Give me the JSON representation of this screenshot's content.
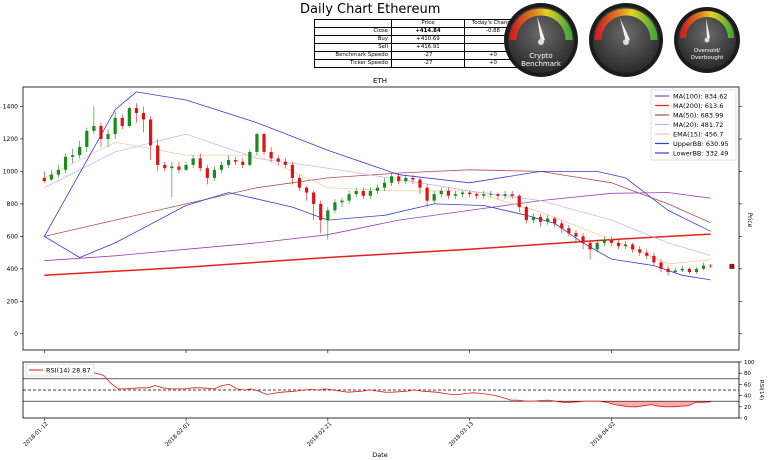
{
  "page": {
    "title": "Daily Chart Ethereum"
  },
  "quote_table": {
    "headers": [
      "",
      "Price",
      "Today's Change"
    ],
    "rows": [
      {
        "label": "Close",
        "price": "+414.84",
        "change": "-0.88"
      },
      {
        "label": "Buy",
        "price": "+410.69",
        "change": ""
      },
      {
        "label": "Sell",
        "price": "+416.91",
        "change": ""
      },
      {
        "label": "Benchmark Speedo",
        "price": "-27",
        "change": "+0"
      },
      {
        "label": "Ticker Speedo",
        "price": "-27",
        "change": "+0"
      }
    ]
  },
  "gauges": [
    {
      "label_line1": "Crypto",
      "label_line2": "Benchmark",
      "value": -27
    },
    {
      "label_line1": "",
      "label_line2": "",
      "value": -27
    },
    {
      "label_line1": "Oversold/",
      "label_line2": "Overbought",
      "value": 28.87
    }
  ],
  "chart_data": [
    {
      "type": "candlestick",
      "title": "ETH",
      "ylabel": "Price",
      "ylim": [
        -100,
        1520
      ],
      "yticks": [
        0,
        200,
        400,
        600,
        800,
        1000,
        1200,
        1400
      ],
      "legend_position": "top-right",
      "legend": [
        {
          "label": "MA(100): 834.62",
          "color": "#9b3fb8"
        },
        {
          "label": "MA(200): 613.6",
          "color": "#e8201a"
        },
        {
          "label": "MA(50): 683.99",
          "color": "#b05050"
        },
        {
          "label": "MA(20): 481.72",
          "color": "#b7b3ee"
        },
        {
          "label": "EMA(15): 456.7",
          "color": "#f2c79a"
        },
        {
          "label": "UpperBB: 630.95",
          "color": "#3a3ae0"
        },
        {
          "label": "LowerBB: 332.49",
          "color": "#3a3ae0"
        }
      ],
      "candles": [
        [
          0,
          960,
          940,
          1000,
          930
        ],
        [
          1,
          950,
          980,
          1010,
          940
        ],
        [
          2,
          980,
          1010,
          1040,
          960
        ],
        [
          3,
          1010,
          1090,
          1110,
          990
        ],
        [
          4,
          1090,
          1100,
          1140,
          1050
        ],
        [
          5,
          1100,
          1150,
          1190,
          1080
        ],
        [
          6,
          1150,
          1250,
          1270,
          1120
        ],
        [
          7,
          1250,
          1280,
          1400,
          1230
        ],
        [
          8,
          1280,
          1200,
          1300,
          1150
        ],
        [
          9,
          1200,
          1230,
          1260,
          1150
        ],
        [
          10,
          1230,
          1330,
          1370,
          1200
        ],
        [
          11,
          1330,
          1280,
          1350,
          1260
        ],
        [
          12,
          1280,
          1390,
          1400,
          1270
        ],
        [
          13,
          1390,
          1360,
          1420,
          1300
        ],
        [
          14,
          1360,
          1320,
          1400,
          1240
        ],
        [
          15,
          1320,
          1160,
          1340,
          1070
        ],
        [
          16,
          1160,
          1040,
          1200,
          1000
        ],
        [
          17,
          1040,
          1020,
          1060,
          1000
        ],
        [
          18,
          1020,
          1030,
          1060,
          840
        ],
        [
          19,
          1030,
          1010,
          1060,
          990
        ],
        [
          20,
          1010,
          1040,
          1060,
          1000
        ],
        [
          21,
          1040,
          1080,
          1100,
          1020
        ],
        [
          22,
          1080,
          1020,
          1110,
          1000
        ],
        [
          23,
          1020,
          960,
          1040,
          920
        ],
        [
          24,
          960,
          1010,
          1030,
          940
        ],
        [
          25,
          1010,
          1040,
          1060,
          990
        ],
        [
          26,
          1040,
          1070,
          1100,
          1020
        ],
        [
          27,
          1070,
          1060,
          1090,
          1040
        ],
        [
          28,
          1060,
          1040,
          1080,
          1020
        ],
        [
          29,
          1040,
          1120,
          1140,
          1030
        ],
        [
          30,
          1120,
          1230,
          1240,
          1100
        ],
        [
          31,
          1230,
          1120,
          1240,
          1100
        ],
        [
          32,
          1120,
          1080,
          1150,
          1060
        ],
        [
          33,
          1080,
          1060,
          1100,
          1040
        ],
        [
          34,
          1060,
          1040,
          1080,
          1020
        ],
        [
          35,
          1040,
          960,
          1060,
          920
        ],
        [
          36,
          960,
          900,
          980,
          880
        ],
        [
          37,
          900,
          870,
          910,
          820
        ],
        [
          38,
          870,
          800,
          880,
          700
        ],
        [
          39,
          800,
          700,
          820,
          620
        ],
        [
          40,
          700,
          760,
          780,
          580
        ],
        [
          41,
          760,
          810,
          830,
          740
        ],
        [
          42,
          810,
          820,
          840,
          780
        ],
        [
          43,
          820,
          860,
          880,
          800
        ],
        [
          44,
          860,
          880,
          900,
          840
        ],
        [
          45,
          880,
          850,
          900,
          830
        ],
        [
          46,
          850,
          880,
          900,
          830
        ],
        [
          47,
          880,
          900,
          920,
          860
        ],
        [
          48,
          900,
          930,
          960,
          880
        ],
        [
          49,
          930,
          970,
          990,
          910
        ],
        [
          50,
          970,
          940,
          990,
          920
        ],
        [
          51,
          940,
          960,
          980,
          920
        ],
        [
          52,
          960,
          950,
          980,
          920
        ],
        [
          53,
          950,
          900,
          960,
          860
        ],
        [
          54,
          900,
          820,
          920,
          780
        ],
        [
          55,
          820,
          860,
          880,
          800
        ],
        [
          56,
          860,
          880,
          900,
          840
        ],
        [
          57,
          880,
          850,
          900,
          830
        ],
        [
          58,
          850,
          860,
          880,
          830
        ],
        [
          59,
          860,
          870,
          880,
          840
        ],
        [
          60,
          870,
          860,
          880,
          840
        ],
        [
          61,
          860,
          850,
          870,
          830
        ],
        [
          62,
          850,
          860,
          880,
          830
        ],
        [
          63,
          860,
          860,
          880,
          840
        ],
        [
          64,
          860,
          850,
          870,
          830
        ],
        [
          65,
          850,
          860,
          880,
          830
        ],
        [
          66,
          860,
          850,
          880,
          830
        ],
        [
          67,
          850,
          780,
          860,
          750
        ],
        [
          68,
          780,
          700,
          790,
          680
        ],
        [
          69,
          700,
          720,
          740,
          680
        ],
        [
          70,
          720,
          690,
          740,
          660
        ],
        [
          71,
          690,
          710,
          730,
          670
        ],
        [
          72,
          710,
          680,
          720,
          660
        ],
        [
          73,
          680,
          650,
          700,
          620
        ],
        [
          74,
          650,
          620,
          670,
          600
        ],
        [
          75,
          620,
          600,
          640,
          570
        ],
        [
          76,
          600,
          560,
          620,
          520
        ],
        [
          77,
          560,
          520,
          580,
          460
        ],
        [
          78,
          520,
          560,
          580,
          500
        ],
        [
          79,
          560,
          580,
          600,
          540
        ],
        [
          80,
          580,
          560,
          600,
          540
        ],
        [
          81,
          560,
          540,
          580,
          520
        ],
        [
          82,
          540,
          550,
          570,
          520
        ],
        [
          83,
          550,
          520,
          560,
          500
        ],
        [
          84,
          520,
          500,
          540,
          480
        ],
        [
          85,
          500,
          480,
          520,
          460
        ],
        [
          86,
          480,
          440,
          500,
          420
        ],
        [
          87,
          440,
          400,
          460,
          380
        ],
        [
          88,
          400,
          380,
          420,
          360
        ],
        [
          89,
          380,
          390,
          410,
          370
        ],
        [
          90,
          390,
          400,
          420,
          380
        ],
        [
          91,
          400,
          380,
          410,
          370
        ],
        [
          92,
          380,
          400,
          410,
          370
        ],
        [
          93,
          400,
          420,
          440,
          390
        ],
        [
          94,
          420,
          415,
          430,
          405
        ]
      ],
      "lines": {
        "ma100": [
          [
            0,
            450
          ],
          [
            10,
            480
          ],
          [
            20,
            520
          ],
          [
            30,
            560
          ],
          [
            40,
            610
          ],
          [
            50,
            700
          ],
          [
            60,
            760
          ],
          [
            70,
            820
          ],
          [
            80,
            865
          ],
          [
            88,
            870
          ],
          [
            94,
            835
          ]
        ],
        "ma200": [
          [
            0,
            360
          ],
          [
            20,
            410
          ],
          [
            40,
            470
          ],
          [
            60,
            520
          ],
          [
            80,
            580
          ],
          [
            94,
            614
          ]
        ],
        "ma50": [
          [
            0,
            600
          ],
          [
            10,
            700
          ],
          [
            20,
            800
          ],
          [
            30,
            900
          ],
          [
            40,
            960
          ],
          [
            50,
            990
          ],
          [
            60,
            1010
          ],
          [
            70,
            1000
          ],
          [
            80,
            930
          ],
          [
            88,
            800
          ],
          [
            94,
            684
          ]
        ],
        "ma20": [
          [
            0,
            900
          ],
          [
            10,
            1120
          ],
          [
            20,
            1230
          ],
          [
            30,
            1080
          ],
          [
            40,
            1020
          ],
          [
            50,
            950
          ],
          [
            60,
            880
          ],
          [
            70,
            820
          ],
          [
            80,
            700
          ],
          [
            88,
            560
          ],
          [
            94,
            482
          ]
        ],
        "ema15": [
          [
            0,
            960
          ],
          [
            10,
            1180
          ],
          [
            20,
            1100
          ],
          [
            30,
            1100
          ],
          [
            40,
            900
          ],
          [
            50,
            880
          ],
          [
            60,
            880
          ],
          [
            70,
            750
          ],
          [
            80,
            580
          ],
          [
            88,
            430
          ],
          [
            94,
            457
          ]
        ],
        "upperbb": [
          [
            0,
            600
          ],
          [
            10,
            1380
          ],
          [
            13,
            1490
          ],
          [
            20,
            1440
          ],
          [
            30,
            1300
          ],
          [
            40,
            1130
          ],
          [
            50,
            980
          ],
          [
            60,
            930
          ],
          [
            70,
            1000
          ],
          [
            78,
            1000
          ],
          [
            82,
            960
          ],
          [
            88,
            760
          ],
          [
            94,
            631
          ]
        ],
        "lowerbb": [
          [
            0,
            600
          ],
          [
            5,
            470
          ],
          [
            10,
            560
          ],
          [
            20,
            790
          ],
          [
            26,
            870
          ],
          [
            35,
            780
          ],
          [
            40,
            700
          ],
          [
            48,
            730
          ],
          [
            55,
            800
          ],
          [
            62,
            790
          ],
          [
            68,
            730
          ],
          [
            72,
            680
          ],
          [
            76,
            560
          ],
          [
            80,
            460
          ],
          [
            86,
            420
          ],
          [
            90,
            360
          ],
          [
            94,
            332
          ]
        ]
      }
    },
    {
      "type": "line",
      "title": "",
      "series_label": "RSI(14) 28.87",
      "ylabel": "RSI(14)",
      "ylim": [
        0,
        100
      ],
      "yticks": [
        0,
        20,
        40,
        60,
        80,
        100
      ],
      "reference_lines": [
        30,
        50,
        70
      ],
      "values": [
        90,
        90,
        88,
        82,
        78,
        80,
        82,
        80,
        76,
        62,
        52,
        52,
        53,
        54,
        54,
        58,
        54,
        52,
        52,
        52,
        54,
        54,
        53,
        52,
        58,
        60,
        52,
        50,
        52,
        48,
        42,
        44,
        46,
        47,
        48,
        50,
        51,
        50,
        52,
        50,
        48,
        46,
        47,
        48,
        50,
        48,
        46,
        46,
        47,
        48,
        50,
        48,
        47,
        46,
        44,
        42,
        42,
        44,
        45,
        44,
        42,
        40,
        36,
        32,
        32,
        30,
        30,
        31,
        32,
        30,
        28,
        28,
        29,
        30,
        30,
        30,
        28,
        24,
        22,
        20,
        20,
        22,
        24,
        21,
        20,
        20,
        21,
        22,
        28,
        28,
        29
      ]
    }
  ],
  "x_axis": {
    "xlabel": "Date",
    "ticks": [
      {
        "label": "2018-01-12",
        "index": 0
      },
      {
        "label": "2018-02-01",
        "index": 20
      },
      {
        "label": "2018-02-21",
        "index": 40
      },
      {
        "label": "2018-03-13",
        "index": 60
      },
      {
        "label": "2018-04-02",
        "index": 80
      }
    ],
    "range": [
      -3,
      98
    ]
  },
  "colors": {
    "up": "#1a8a1a",
    "down": "#dc1414",
    "rsi": "#e81818",
    "last_marker": "#8b1a1a"
  }
}
